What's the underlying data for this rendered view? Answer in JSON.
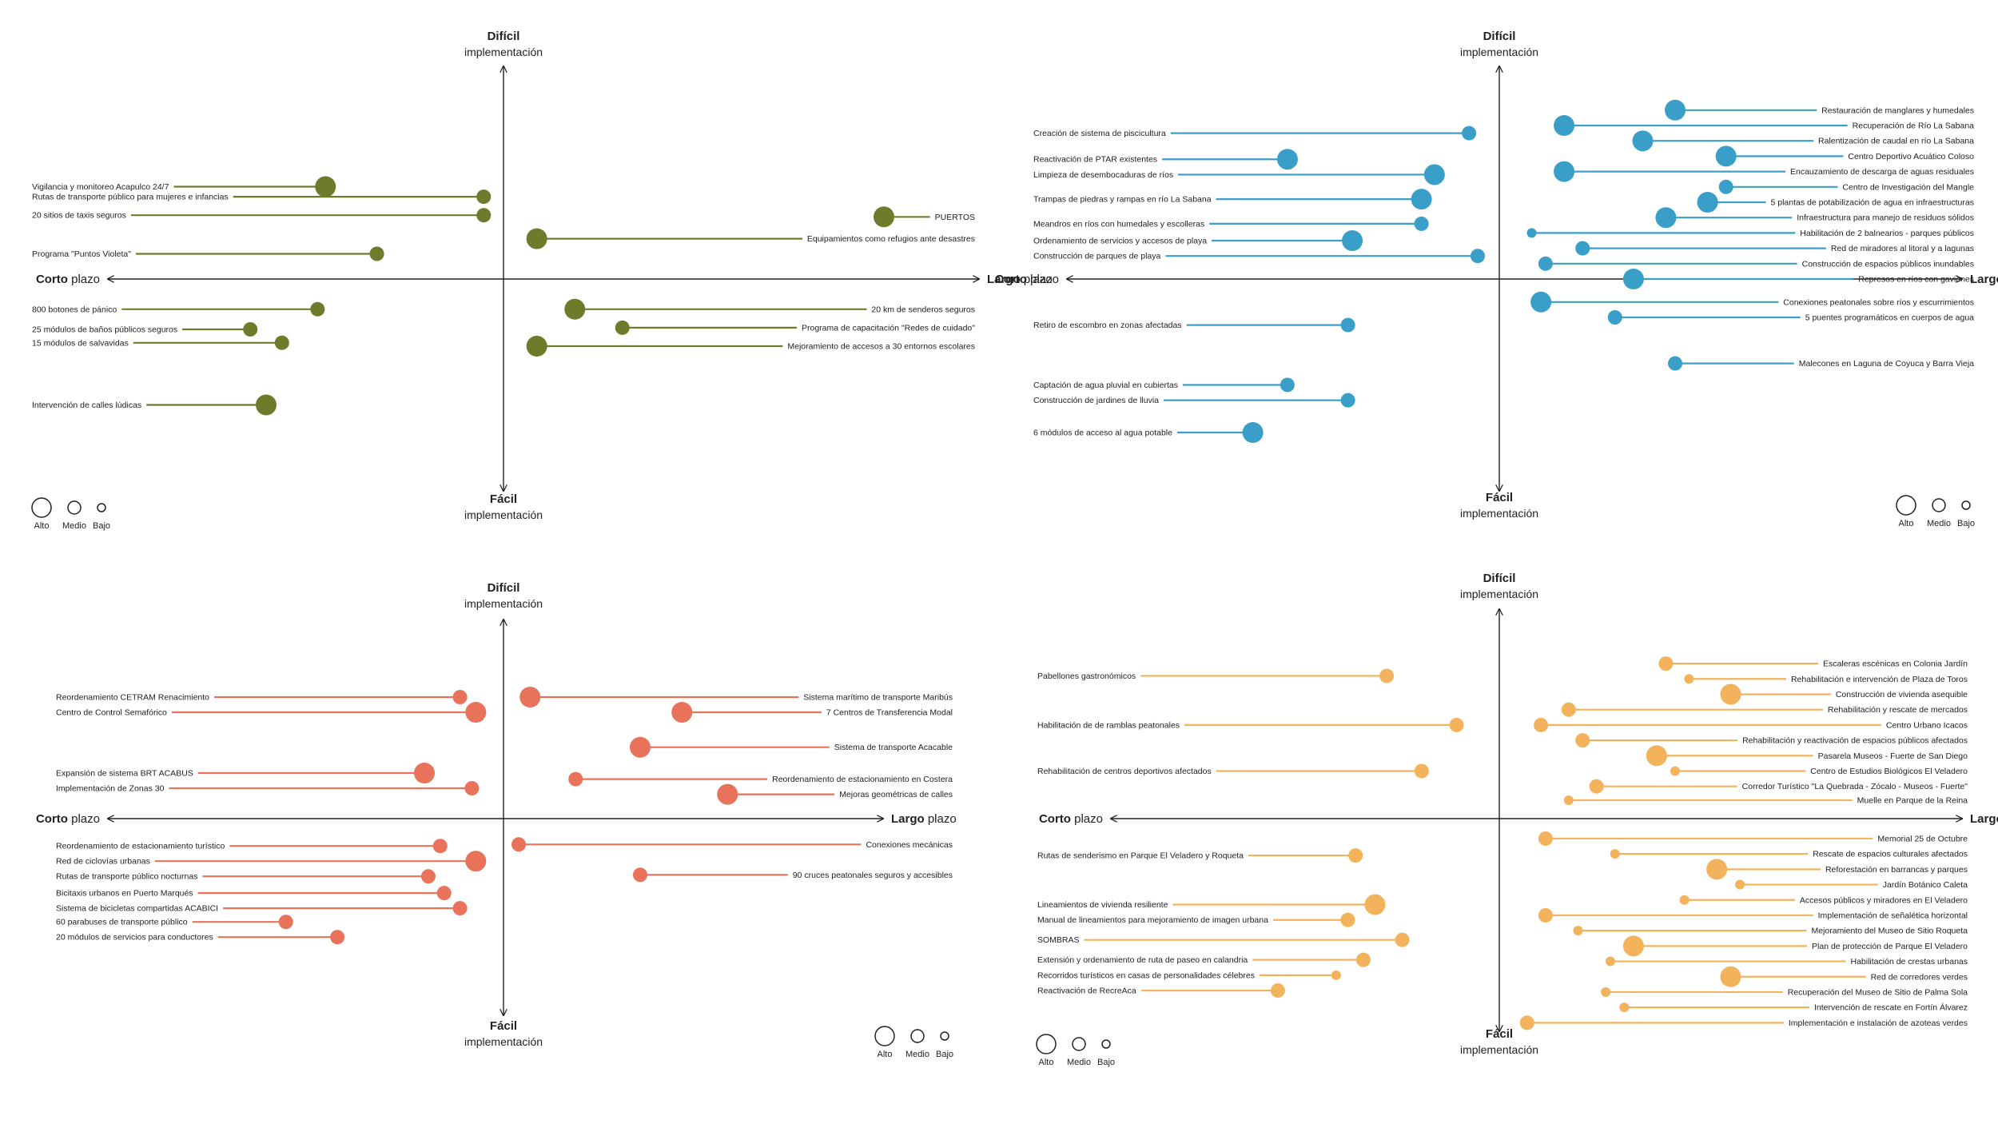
{
  "axis_labels": {
    "top_bold": "Difícil",
    "top_sub": "implementación",
    "bottom_bold": "Fácil",
    "bottom_sub": "implementación",
    "left_bold": "Corto",
    "left_sub": "plazo",
    "right_bold": "Largo",
    "right_sub": "plazo"
  },
  "legend": [
    "Alto",
    "Medio",
    "Bajo"
  ],
  "panels": [
    {
      "id": "verde",
      "color": "#6f7a2b",
      "items": [
        {
          "label": "Vigilancia y monitoreo Acapulco 24/7",
          "side": "L",
          "y": 5.5,
          "x": 0.45,
          "size": "alto"
        },
        {
          "label": "Rutas de transporte público para mujeres e infancias",
          "side": "L",
          "y": 4.9,
          "x": 0.05,
          "size": "medio"
        },
        {
          "label": "20 sitios de taxis seguros",
          "side": "L",
          "y": 3.8,
          "x": 0.05,
          "size": "medio"
        },
        {
          "label": "Programa \"Puntos Violeta\"",
          "side": "L",
          "y": 1.5,
          "x": 0.32,
          "size": "medio"
        },
        {
          "label": "PUERTOS",
          "side": "R",
          "y": 3.7,
          "x": 0.8,
          "size": "alto"
        },
        {
          "label": "Equipamientos como refugios ante desastres",
          "side": "R",
          "y": 2.4,
          "x": 0.07,
          "size": "alto"
        },
        {
          "label": "800 botones de pánico",
          "side": "L",
          "y": -1.8,
          "x": 0.47,
          "size": "medio"
        },
        {
          "label": "25 módulos de baños públicos seguros",
          "side": "L",
          "y": -3.0,
          "x": 0.64,
          "size": "medio"
        },
        {
          "label": "15 módulos de salvavidas",
          "side": "L",
          "y": -3.8,
          "x": 0.56,
          "size": "medio"
        },
        {
          "label": "Intervención de calles lúdicas",
          "side": "L",
          "y": -7.5,
          "x": 0.6,
          "size": "alto"
        },
        {
          "label": "20 km de senderos seguros",
          "side": "R",
          "y": -1.8,
          "x": 0.15,
          "size": "alto"
        },
        {
          "label": "Programa de capacitación \"Redes de cuidado\"",
          "side": "R",
          "y": -2.9,
          "x": 0.25,
          "size": "medio"
        },
        {
          "label": "Mejoramiento de accesos a 30 entornos escolares",
          "side": "R",
          "y": -4.0,
          "x": 0.07,
          "size": "alto"
        }
      ]
    },
    {
      "id": "azul",
      "color": "#3a9fc8",
      "items": [
        {
          "label": "Creación de sistema de piscicultura",
          "side": "L",
          "y": 9.5,
          "x": 0.07,
          "size": "medio"
        },
        {
          "label": "Reactivación de PTAR existentes",
          "side": "L",
          "y": 7.8,
          "x": 0.49,
          "size": "alto"
        },
        {
          "label": "Limpieza de desembocaduras de ríos",
          "side": "L",
          "y": 6.8,
          "x": 0.15,
          "size": "alto"
        },
        {
          "label": "Trampas de piedras y rampas en río La Sabana",
          "side": "L",
          "y": 5.2,
          "x": 0.18,
          "size": "alto"
        },
        {
          "label": "Meandros en ríos con humedales y escolleras",
          "side": "L",
          "y": 3.6,
          "x": 0.18,
          "size": "medio"
        },
        {
          "label": "Ordenamiento de servicios y accesos de playa",
          "side": "L",
          "y": 2.5,
          "x": 0.34,
          "size": "alto"
        },
        {
          "label": "Construcción de parques de playa",
          "side": "L",
          "y": 1.5,
          "x": 0.05,
          "size": "medio"
        },
        {
          "label": "Restauración de manglares y humedales",
          "side": "R",
          "y": 11.0,
          "x": 0.38,
          "size": "alto"
        },
        {
          "label": "Recuperación de Río La Sabana",
          "side": "R",
          "y": 10.0,
          "x": 0.14,
          "size": "alto"
        },
        {
          "label": "Ralentización de caudal en río La Sabana",
          "side": "R",
          "y": 9.0,
          "x": 0.31,
          "size": "alto"
        },
        {
          "label": "Centro Deportivo Acuático Coloso",
          "side": "R",
          "y": 8.0,
          "x": 0.49,
          "size": "alto"
        },
        {
          "label": "Encauzamiento de descarga de aguas residuales",
          "side": "R",
          "y": 7.0,
          "x": 0.14,
          "size": "alto"
        },
        {
          "label": "Centro de Investigación del Mangle",
          "side": "R",
          "y": 6.0,
          "x": 0.49,
          "size": "medio"
        },
        {
          "label": "5 plantas de potabilización de agua en infraestructuras",
          "side": "R",
          "y": 5.0,
          "x": 0.45,
          "size": "alto"
        },
        {
          "label": "Infraestructura para manejo de residuos sólidos",
          "side": "R",
          "y": 4.0,
          "x": 0.36,
          "size": "alto"
        },
        {
          "label": "Habilitación de 2 balnearios - parques públicos",
          "side": "R",
          "y": 3.0,
          "x": 0.07,
          "size": "bajo"
        },
        {
          "label": "Red de miradores al litoral y a lagunas",
          "side": "R",
          "y": 2.0,
          "x": 0.18,
          "size": "medio"
        },
        {
          "label": "Construcción de espacios públicos inundables",
          "side": "R",
          "y": 1.0,
          "x": 0.1,
          "size": "medio"
        },
        {
          "label": "Represos en ríos con gaviones",
          "side": "R",
          "y": 0.0,
          "x": 0.29,
          "size": "alto"
        },
        {
          "label": "Retiro de escombro en zonas afectadas",
          "side": "L",
          "y": -3.0,
          "x": 0.35,
          "size": "medio"
        },
        {
          "label": "Captación de agua pluvial en cubiertas",
          "side": "L",
          "y": -6.9,
          "x": 0.49,
          "size": "medio"
        },
        {
          "label": "Construcción de jardines de lluvia",
          "side": "L",
          "y": -7.9,
          "x": 0.35,
          "size": "medio"
        },
        {
          "label": "6 módulos de acceso al agua potable",
          "side": "L",
          "y": -10.0,
          "x": 0.57,
          "size": "alto"
        },
        {
          "label": "Conexiones peatonales sobre ríos y escurrimientos",
          "side": "R",
          "y": -1.5,
          "x": 0.09,
          "size": "alto"
        },
        {
          "label": "5 puentes programáticos en cuerpos de agua",
          "side": "R",
          "y": -2.5,
          "x": 0.25,
          "size": "medio"
        },
        {
          "label": "Malecones en Laguna de Coyuca y Barra Vieja",
          "side": "R",
          "y": -5.5,
          "x": 0.38,
          "size": "medio"
        }
      ]
    },
    {
      "id": "rojo",
      "color": "#e8735a",
      "items": [
        {
          "label": "Reordenamiento CETRAM Renacimiento",
          "side": "L",
          "y": 8.0,
          "x": 0.11,
          "size": "medio"
        },
        {
          "label": "Centro de Control Semafórico",
          "side": "L",
          "y": 7.0,
          "x": 0.07,
          "size": "alto"
        },
        {
          "label": "Expansión de sistema BRT ACABUS",
          "side": "L",
          "y": 3.0,
          "x": 0.2,
          "size": "alto"
        },
        {
          "label": "Implementación de Zonas 30",
          "side": "L",
          "y": 2.0,
          "x": 0.08,
          "size": "medio"
        },
        {
          "label": "Sistema marítimo de transporte Maribús",
          "side": "R",
          "y": 8.0,
          "x": 0.07,
          "size": "alto"
        },
        {
          "label": "7 Centros de Transferencia Modal",
          "side": "R",
          "y": 7.0,
          "x": 0.47,
          "size": "alto"
        },
        {
          "label": "Sistema de transporte Acacable",
          "side": "R",
          "y": 4.7,
          "x": 0.36,
          "size": "alto"
        },
        {
          "label": "Reordenamiento de estacionamiento en Costera",
          "side": "R",
          "y": 2.6,
          "x": 0.19,
          "size": "medio"
        },
        {
          "label": "Mejoras geométricas de calles",
          "side": "R",
          "y": 1.6,
          "x": 0.59,
          "size": "alto"
        },
        {
          "label": "Reordenamiento de estacionamiento turístico",
          "side": "L",
          "y": -1.8,
          "x": 0.16,
          "size": "medio"
        },
        {
          "label": "Red de ciclovías urbanas",
          "side": "L",
          "y": -2.8,
          "x": 0.07,
          "size": "alto"
        },
        {
          "label": "Rutas de transporte público nocturnas",
          "side": "L",
          "y": -3.8,
          "x": 0.19,
          "size": "medio"
        },
        {
          "label": "Bicitaxis urbanos en Puerto Marqués",
          "side": "L",
          "y": -4.9,
          "x": 0.15,
          "size": "medio"
        },
        {
          "label": "Sistema de bicicletas compartidas ACABICI",
          "side": "L",
          "y": -5.9,
          "x": 0.11,
          "size": "medio"
        },
        {
          "label": "60 parabuses de transporte público",
          "side": "L",
          "y": -6.8,
          "x": 0.55,
          "size": "medio"
        },
        {
          "label": "20 módulos de servicios para conductores",
          "side": "L",
          "y": -7.8,
          "x": 0.42,
          "size": "medio"
        },
        {
          "label": "Conexiones mecánicas",
          "side": "R",
          "y": -1.7,
          "x": 0.04,
          "size": "medio"
        },
        {
          "label": "90 cruces peatonales seguros y accesibles",
          "side": "R",
          "y": -3.7,
          "x": 0.36,
          "size": "medio"
        }
      ]
    },
    {
      "id": "amarillo",
      "color": "#f2b35c",
      "items": [
        {
          "label": "Pabellones gastronómicos",
          "side": "L",
          "y": 9.3,
          "x": 0.29,
          "size": "medio"
        },
        {
          "label": "Habilitación de de ramblas peatonales",
          "side": "L",
          "y": 6.1,
          "x": 0.11,
          "size": "medio"
        },
        {
          "label": "Rehabilitación de centros deportivos afectados",
          "side": "L",
          "y": 3.1,
          "x": 0.2,
          "size": "medio"
        },
        {
          "label": "Escaleras escénicas en Colonia Jardín",
          "side": "R",
          "y": 10.1,
          "x": 0.36,
          "size": "medio"
        },
        {
          "label": "Rehabilitación e intervención de Plaza de Toros",
          "side": "R",
          "y": 9.1,
          "x": 0.41,
          "size": "bajo"
        },
        {
          "label": "Construcción de vivienda asequible",
          "side": "R",
          "y": 8.1,
          "x": 0.5,
          "size": "alto"
        },
        {
          "label": "Rehabilitación y rescate de mercados",
          "side": "R",
          "y": 7.1,
          "x": 0.15,
          "size": "medio"
        },
        {
          "label": "Centro Urbano Icacos",
          "side": "R",
          "y": 6.1,
          "x": 0.09,
          "size": "medio"
        },
        {
          "label": "Rehabilitación y reactivación de espacios públicos afectados",
          "side": "R",
          "y": 5.1,
          "x": 0.18,
          "size": "medio"
        },
        {
          "label": "Pasarela Museos - Fuerte de San Diego",
          "side": "R",
          "y": 4.1,
          "x": 0.34,
          "size": "alto"
        },
        {
          "label": "Centro de Estudios Biológicos El Veladero",
          "side": "R",
          "y": 3.1,
          "x": 0.38,
          "size": "bajo"
        },
        {
          "label": "Corredor Turístico \"La Quebrada - Zócalo - Museos - Fuerte\"",
          "side": "R",
          "y": 2.1,
          "x": 0.21,
          "size": "medio"
        },
        {
          "label": "Muelle en Parque de la Reina",
          "side": "R",
          "y": 1.2,
          "x": 0.15,
          "size": "bajo"
        },
        {
          "label": "Rutas de senderismo en Parque El Veladero y Roqueta",
          "side": "L",
          "y": -2.4,
          "x": 0.37,
          "size": "medio"
        },
        {
          "label": "Lineamientos de vivienda resiliente",
          "side": "L",
          "y": -5.6,
          "x": 0.32,
          "size": "alto"
        },
        {
          "label": "Manual de lineamientos para mejoramiento de imagen urbana",
          "side": "L",
          "y": -6.6,
          "x": 0.39,
          "size": "medio"
        },
        {
          "label": "SOMBRAS",
          "side": "L",
          "y": -7.9,
          "x": 0.25,
          "size": "medio"
        },
        {
          "label": "Extensión y ordenamiento de ruta de paseo en calandria",
          "side": "L",
          "y": -9.2,
          "x": 0.35,
          "size": "medio"
        },
        {
          "label": "Recorridos turísticos en casas de personalidades célebres",
          "side": "L",
          "y": -10.2,
          "x": 0.42,
          "size": "bajo"
        },
        {
          "label": "Reactivación de RecreAca",
          "side": "L",
          "y": -11.2,
          "x": 0.57,
          "size": "medio"
        },
        {
          "label": "Memorial 25 de Octubre",
          "side": "R",
          "y": -1.3,
          "x": 0.1,
          "size": "medio"
        },
        {
          "label": "Rescate de espacios culturales afectados",
          "side": "R",
          "y": -2.3,
          "x": 0.25,
          "size": "bajo"
        },
        {
          "label": "Reforestación en barrancas y parques",
          "side": "R",
          "y": -3.3,
          "x": 0.47,
          "size": "alto"
        },
        {
          "label": "Jardín Botánico Caleta",
          "side": "R",
          "y": -4.3,
          "x": 0.52,
          "size": "bajo"
        },
        {
          "label": "Accesos públicos y miradores en El Veladero",
          "side": "R",
          "y": -5.3,
          "x": 0.4,
          "size": "bajo"
        },
        {
          "label": "Implementación de señalética horizontal",
          "side": "R",
          "y": -6.3,
          "x": 0.1,
          "size": "medio"
        },
        {
          "label": "Mejoramiento del Museo de Sitio Roqueta",
          "side": "R",
          "y": -7.3,
          "x": 0.17,
          "size": "bajo"
        },
        {
          "label": "Plan de protección de Parque El Veladero",
          "side": "R",
          "y": -8.3,
          "x": 0.29,
          "size": "alto"
        },
        {
          "label": "Habilitación de crestas urbanas",
          "side": "R",
          "y": -9.3,
          "x": 0.24,
          "size": "bajo"
        },
        {
          "label": "Red de corredores verdes",
          "side": "R",
          "y": -10.3,
          "x": 0.5,
          "size": "alto"
        },
        {
          "label": "Recuperación del Museo de Sitio de Palma Sola",
          "side": "R",
          "y": -11.3,
          "x": 0.23,
          "size": "bajo"
        },
        {
          "label": "Intervención de rescate en Fortín Álvarez",
          "side": "R",
          "y": -12.3,
          "x": 0.27,
          "size": "bajo"
        },
        {
          "label": "Implementación e instalación de azoteas verdes",
          "side": "R",
          "y": -13.3,
          "x": 0.06,
          "size": "medio"
        }
      ]
    }
  ]
}
